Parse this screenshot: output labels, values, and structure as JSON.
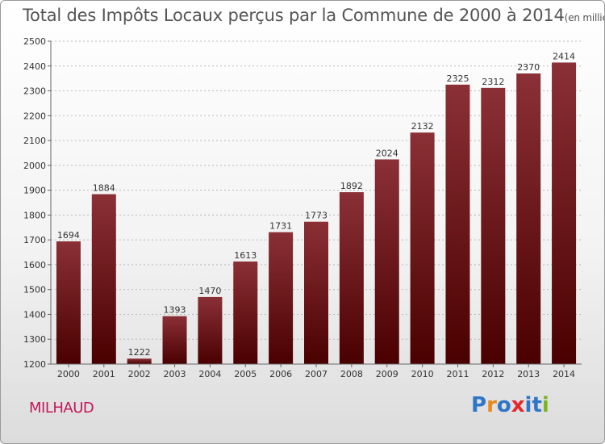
{
  "title": "Total des Impôts Locaux perçus par la Commune de 2000 à 2014",
  "title_unit": "(en milliers d'€)",
  "commune": "MILHAUD",
  "brand": {
    "letters": [
      "P",
      "r",
      "o",
      "x",
      "i",
      "t",
      "i"
    ],
    "colors": [
      "#2f76c8",
      "#e8891a",
      "#2f76c8",
      "#e6262c",
      "#2f76c8",
      "#2f76c8",
      "#7ab51d"
    ]
  },
  "colors": {
    "bar_top": "#8a3036",
    "bar_bottom": "#4a0000",
    "grid": "#bbbbbb"
  },
  "chart_data": {
    "type": "bar",
    "title": "Total des Impôts Locaux perçus par la Commune de 2000 à 2014",
    "xlabel": "",
    "ylabel": "en milliers d'€",
    "categories": [
      "2000",
      "2001",
      "2002",
      "2003",
      "2004",
      "2005",
      "2006",
      "2007",
      "2008",
      "2009",
      "2010",
      "2011",
      "2012",
      "2013",
      "2014"
    ],
    "values": [
      1694,
      1884,
      1222,
      1393,
      1470,
      1613,
      1731,
      1773,
      1892,
      2024,
      2132,
      2325,
      2312,
      2370,
      2414
    ],
    "ylim": [
      1200,
      2500
    ],
    "yticks": [
      1200,
      1300,
      1400,
      1500,
      1600,
      1700,
      1800,
      1900,
      2000,
      2100,
      2200,
      2300,
      2400,
      2500
    ],
    "grid": true
  }
}
